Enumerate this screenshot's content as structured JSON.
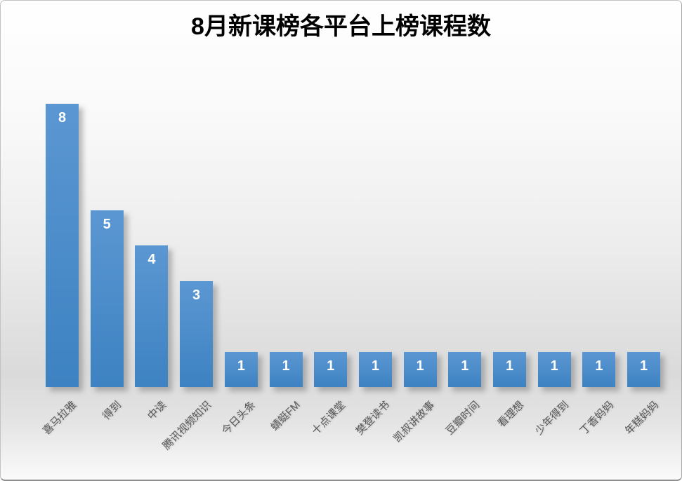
{
  "chart_data": {
    "type": "bar",
    "title": "8月新课榜各平台上榜课程数",
    "categories": [
      "喜马拉雅",
      "得到",
      "中读",
      "腾讯视频知识",
      "今日头条",
      "蜻蜓FM",
      "十点课堂",
      "樊登读书",
      "凯叔讲故事",
      "豆瓣时间",
      "看理想",
      "少年得到",
      "丁香妈妈",
      "年糕妈妈"
    ],
    "values": [
      8,
      5,
      4,
      3,
      1,
      1,
      1,
      1,
      1,
      1,
      1,
      1,
      1,
      1
    ],
    "xlabel": "",
    "ylabel": "",
    "ylim": [
      0,
      8
    ],
    "grid": false,
    "legend": "none",
    "data_labels": "inside-end",
    "category_label_rotation_deg": -45
  },
  "colors": {
    "bar_gradient_top": "#5b97d2",
    "bar_gradient_bottom": "#3d82c2",
    "bar_shadow": "rgba(110,110,110,0.45)",
    "value_label": "#ffffff",
    "category_label": "#595959",
    "title": "#000000",
    "background_top": "#ffffff",
    "background_mid": "#dadada",
    "background_bottom": "#fafafa",
    "border": "#c2c2c2"
  }
}
